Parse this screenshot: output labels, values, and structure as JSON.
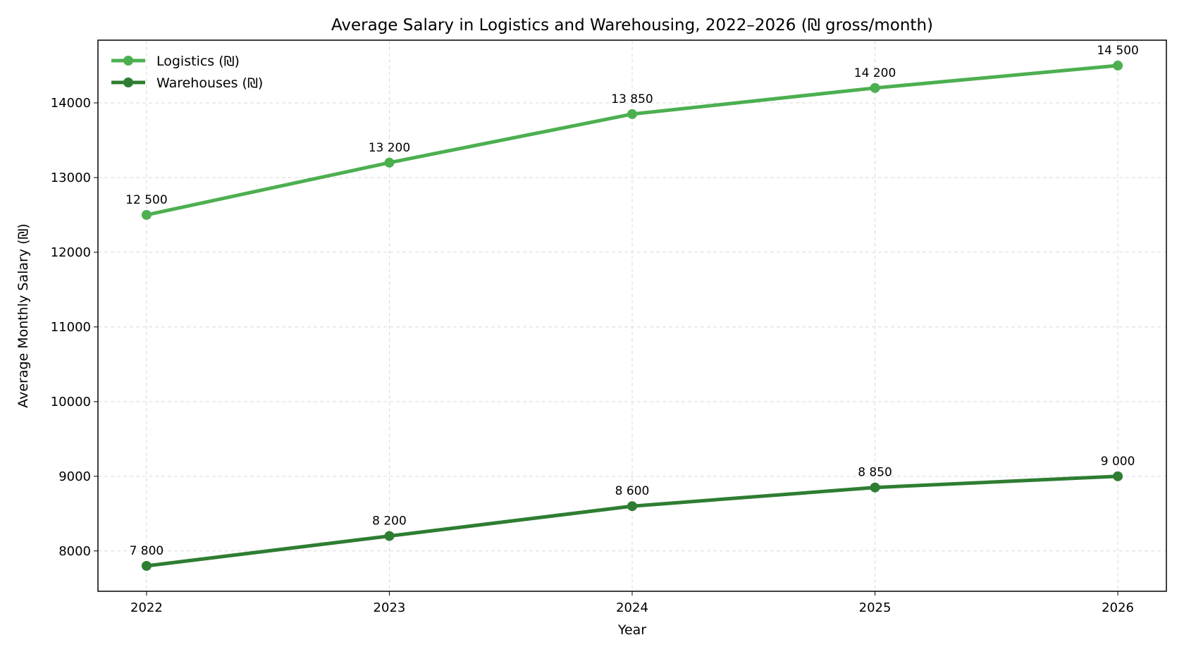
{
  "chart_data": {
    "type": "line",
    "title": "Average Salary in Logistics and Warehousing, 2022–2026 (₪ gross/month)",
    "xlabel": "Year",
    "ylabel": "Average Monthly Salary (₪)",
    "x": [
      2022,
      2023,
      2024,
      2025,
      2026
    ],
    "x_tick_labels": [
      "2022",
      "2023",
      "2024",
      "2025",
      "2026"
    ],
    "xlim": [
      2021.8,
      2026.2
    ],
    "ylim": [
      7460,
      14840
    ],
    "y_ticks": [
      8000,
      9000,
      10000,
      11000,
      12000,
      13000,
      14000
    ],
    "y_tick_labels": [
      "8000",
      "9000",
      "10000",
      "11000",
      "12000",
      "13000",
      "14000"
    ],
    "grid": true,
    "legend_position": "top-left",
    "series": [
      {
        "name": "Logistics (₪)",
        "color": "#4caf50",
        "values": [
          12500,
          13200,
          13850,
          14200,
          14500
        ],
        "data_labels": [
          "12 500",
          "13 200",
          "13 850",
          "14 200",
          "14 500"
        ]
      },
      {
        "name": "Warehouses (₪)",
        "color": "#2e7d32",
        "values": [
          7800,
          8200,
          8600,
          8850,
          9000
        ],
        "data_labels": [
          "7 800",
          "8 200",
          "8 600",
          "8 850",
          "9 000"
        ]
      }
    ]
  }
}
